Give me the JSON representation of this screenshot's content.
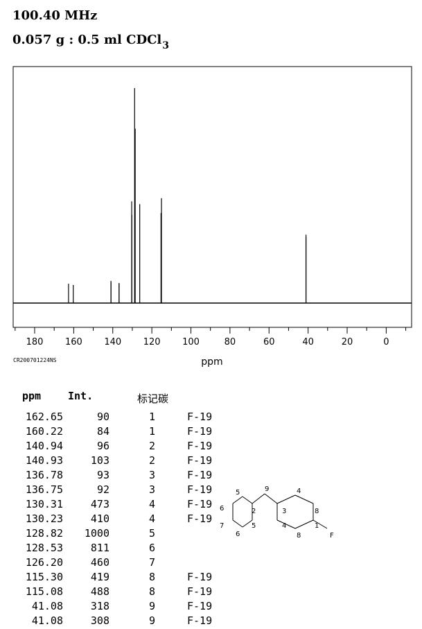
{
  "header": {
    "frequency": "100.40 MHz",
    "sample_main": "0.057 g : 0.5 ml CDCl",
    "sample_subscript": "3"
  },
  "spectrum_code": "CR200701224NS",
  "chart_data": {
    "type": "spectrum",
    "xlabel": "ppm",
    "xlim": [
      191,
      -13
    ],
    "x_reversed": true,
    "ticks": [
      180,
      160,
      140,
      120,
      100,
      80,
      60,
      40,
      20,
      0
    ],
    "tick_labels": [
      "180",
      "160",
      "140",
      "120",
      "100",
      "80",
      "60",
      "40",
      "20",
      "0"
    ],
    "ylim": [
      0,
      1100
    ],
    "baseline": 0,
    "peaks": [
      {
        "ppm": 162.65,
        "intensity": 90
      },
      {
        "ppm": 160.22,
        "intensity": 84
      },
      {
        "ppm": 140.94,
        "intensity": 96
      },
      {
        "ppm": 140.93,
        "intensity": 103
      },
      {
        "ppm": 136.78,
        "intensity": 93
      },
      {
        "ppm": 136.75,
        "intensity": 92
      },
      {
        "ppm": 130.31,
        "intensity": 473
      },
      {
        "ppm": 130.23,
        "intensity": 410
      },
      {
        "ppm": 128.82,
        "intensity": 1000
      },
      {
        "ppm": 128.53,
        "intensity": 811
      },
      {
        "ppm": 126.2,
        "intensity": 460
      },
      {
        "ppm": 115.3,
        "intensity": 419
      },
      {
        "ppm": 115.08,
        "intensity": 488
      },
      {
        "ppm": 41.08,
        "intensity": 318
      },
      {
        "ppm": 41.08,
        "intensity": 308
      }
    ]
  },
  "table": {
    "headers": [
      "ppm",
      "Int.",
      "标记碳"
    ],
    "rows": [
      {
        "ppm": "162.65",
        "int": "90",
        "label": "1",
        "note": "F-19"
      },
      {
        "ppm": "160.22",
        "int": "84",
        "label": "1",
        "note": "F-19"
      },
      {
        "ppm": "140.94",
        "int": "96",
        "label": "2",
        "note": "F-19"
      },
      {
        "ppm": "140.93",
        "int": "103",
        "label": "2",
        "note": "F-19"
      },
      {
        "ppm": "136.78",
        "int": "93",
        "label": "3",
        "note": "F-19"
      },
      {
        "ppm": "136.75",
        "int": "92",
        "label": "3",
        "note": "F-19"
      },
      {
        "ppm": "130.31",
        "int": "473",
        "label": "4",
        "note": "F-19"
      },
      {
        "ppm": "130.23",
        "int": "410",
        "label": "4",
        "note": "F-19"
      },
      {
        "ppm": "128.82",
        "int": "1000",
        "label": "5",
        "note": ""
      },
      {
        "ppm": "128.53",
        "int": "811",
        "label": "6",
        "note": ""
      },
      {
        "ppm": "126.20",
        "int": "460",
        "label": "7",
        "note": ""
      },
      {
        "ppm": "115.30",
        "int": "419",
        "label": "8",
        "note": "F-19"
      },
      {
        "ppm": "115.08",
        "int": "488",
        "label": "8",
        "note": "F-19"
      },
      {
        "ppm": "41.08",
        "int": "318",
        "label": "9",
        "note": "F-19"
      },
      {
        "ppm": "41.08",
        "int": "308",
        "label": "9",
        "note": "F-19"
      }
    ]
  },
  "structure": {
    "atom_labels": [
      "5",
      "9",
      "4",
      "6",
      "2",
      "3",
      "8",
      "7",
      "5",
      "4",
      "1",
      "F",
      "6",
      "8"
    ]
  }
}
